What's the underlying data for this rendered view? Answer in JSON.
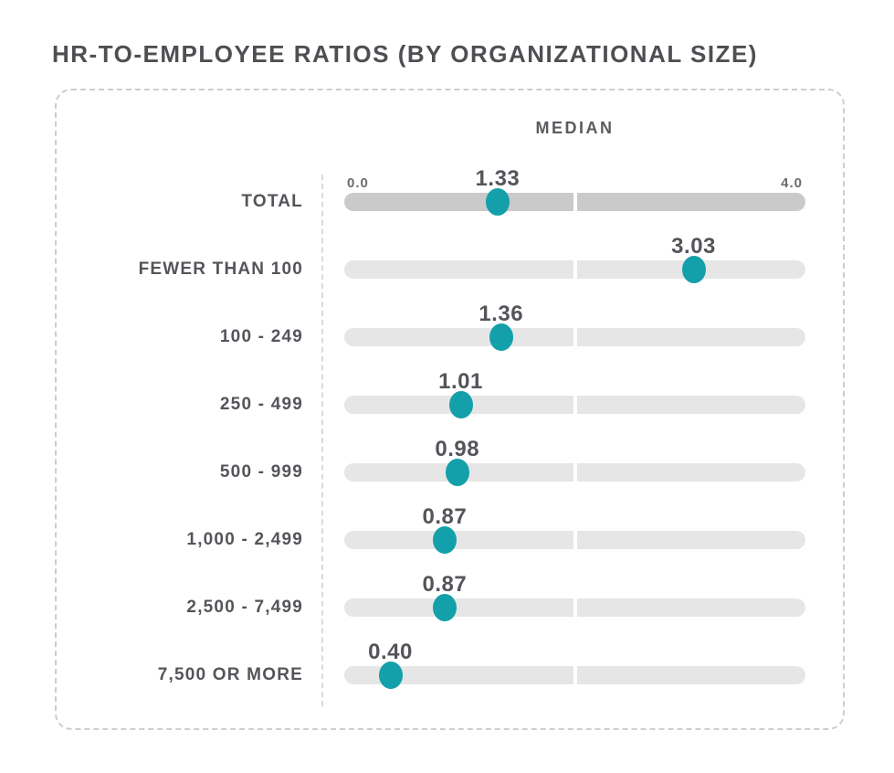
{
  "page_title": "HR-TO-EMPLOYEE RATIOS (BY ORGANIZATIONAL SIZE)",
  "panel": {
    "column_header": "MEDIAN",
    "axis": {
      "min_label": "0.0",
      "max_label": "4.0"
    }
  },
  "colors": {
    "dot": "#14a0aa",
    "track": "#e6e6e7",
    "track_total": "#cacacb",
    "text": "#54555a",
    "border": "#cdcdce",
    "dashline": "#dbdbdc"
  },
  "chart_data": {
    "type": "scatter",
    "subtype": "horizontal-dot-plot",
    "title": "HR-TO-EMPLOYEE RATIOS (BY ORGANIZATIONAL SIZE)",
    "column_header": "MEDIAN",
    "categories": [
      "TOTAL",
      "FEWER THAN 100",
      "100 - 249",
      "250 - 499",
      "500 - 999",
      "1,000 - 2,499",
      "2,500 - 7,499",
      "7,500 OR MORE"
    ],
    "values": [
      1.33,
      3.03,
      1.36,
      1.01,
      0.98,
      0.87,
      0.87,
      0.4
    ],
    "value_labels": [
      "1.33",
      "3.03",
      "1.36",
      "1.01",
      "0.98",
      "0.87",
      "0.87",
      "0.40"
    ],
    "xlim": [
      0,
      4
    ],
    "x_tick_labels": [
      "0.0",
      "4.0"
    ],
    "orientation": "horizontal",
    "grid": false,
    "legend": false,
    "track_midpoint_divider": 2.0
  }
}
